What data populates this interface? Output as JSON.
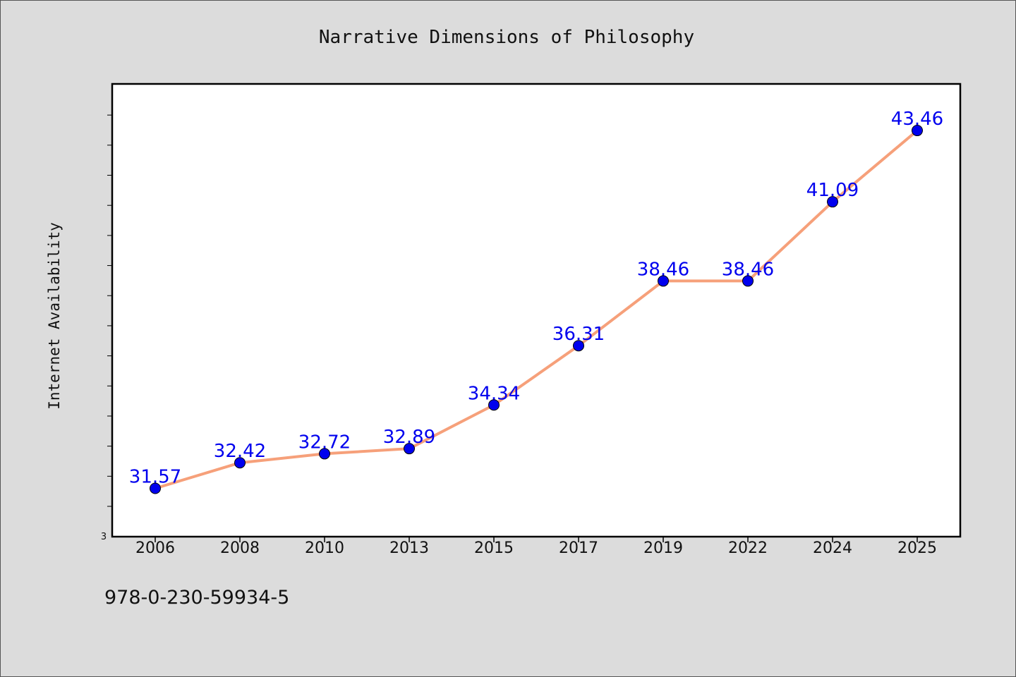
{
  "chart_data": {
    "type": "line",
    "title": "Narrative Dimensions of Philosophy",
    "xlabel": "",
    "ylabel": "Internet Availability",
    "categories": [
      "2006",
      "2008",
      "2010",
      "2013",
      "2015",
      "2017",
      "2019",
      "2022",
      "2024",
      "2025"
    ],
    "series": [
      {
        "values": [
          31.57,
          32.42,
          32.72,
          32.89,
          34.34,
          36.31,
          38.46,
          38.46,
          41.09,
          43.46
        ],
        "data_labels": [
          "31.57",
          "32.42",
          "32.72",
          "32.89",
          "34.34",
          "36.31",
          "38.46",
          "38.46",
          "41.09",
          "43.46"
        ]
      }
    ],
    "y_min_label": "3",
    "ylim": [
      30.2,
      45.2
    ],
    "grid": false,
    "legend": "none",
    "colors": {
      "line": "#f6a07a",
      "marker": "#0000ee",
      "label": "#0000ee",
      "plot_bg": "#ffffff",
      "page_bg": "#dcdcdc"
    }
  },
  "footer": {
    "isbn": "978-0-230-59934-5"
  }
}
